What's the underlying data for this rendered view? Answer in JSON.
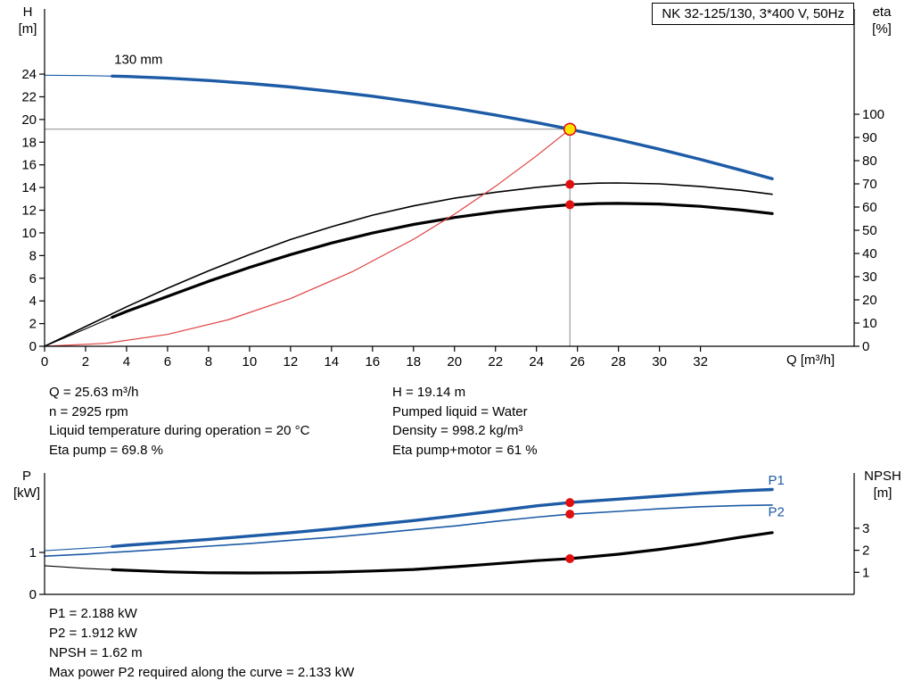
{
  "colors": {
    "curve_blue": "#1d5ba6",
    "curve_black": "#000000",
    "curve_red": "#e04040",
    "dot_red": "#e01010",
    "duty_fill": "#ffe400",
    "duty_stroke": "#e01010",
    "guide": "#8c8c8c",
    "axis": "#000000",
    "label_blue": "#1d5ba6"
  },
  "axis_captions": {
    "top": {
      "left": [
        "H",
        "[m]"
      ],
      "right": [
        "eta",
        "[%]"
      ],
      "x": "Q [m³/h]"
    },
    "bottom": {
      "left": [
        "P",
        "[kW]"
      ],
      "right": [
        "NPSH",
        "[m]"
      ]
    }
  },
  "info": {
    "left": [
      "Q = 25.63 m³/h",
      "n = 2925 rpm",
      "Liquid temperature during operation = 20 °C",
      "Eta pump = 69.8 %"
    ],
    "right": [
      "H = 19.14 m",
      "Pumped liquid = Water",
      "Density = 998.2 kg/m³",
      "Eta pump+motor = 61 %"
    ]
  },
  "results": [
    "P1 = 2.188 kW",
    "P2 = 1.912 kW",
    "NPSH = 1.62 m",
    "Max power P2 required along the curve = 2.133 kW"
  ],
  "chart_data": [
    {
      "id": "qh",
      "type": "line",
      "title": "NK 32-125/130, 3*400 V, 50Hz",
      "x": {
        "label": "Q [m³/h]",
        "min": 0,
        "max": 39.5,
        "ticks": [
          0,
          2,
          4,
          6,
          8,
          10,
          12,
          14,
          16,
          18,
          20,
          22,
          24,
          26,
          28,
          30,
          32
        ]
      },
      "y_left": {
        "label": "H [m]",
        "min": 0,
        "max": 29.75,
        "ticks": [
          0,
          2,
          4,
          6,
          8,
          10,
          12,
          14,
          16,
          18,
          20,
          22,
          24
        ]
      },
      "y_right": {
        "label": "eta [%]",
        "min": 0,
        "max": 145.4,
        "ticks": [
          0,
          10,
          20,
          30,
          40,
          50,
          60,
          70,
          80,
          90,
          100
        ]
      },
      "grid": false,
      "series": [
        {
          "name": "head-curve-130mm",
          "axis": "left",
          "color": "#1d5ba6",
          "width": 3.4,
          "thin_width": 1.1,
          "thick_from": 3.3,
          "points": [
            [
              0,
              23.9
            ],
            [
              2,
              23.87
            ],
            [
              3.3,
              23.82
            ],
            [
              4,
              23.79
            ],
            [
              6,
              23.64
            ],
            [
              8,
              23.44
            ],
            [
              10,
              23.18
            ],
            [
              12,
              22.86
            ],
            [
              14,
              22.48
            ],
            [
              16,
              22.05
            ],
            [
              18,
              21.55
            ],
            [
              20,
              21.0
            ],
            [
              22,
              20.39
            ],
            [
              24,
              19.73
            ],
            [
              25.63,
              19.14
            ],
            [
              28,
              18.22
            ],
            [
              30,
              17.38
            ],
            [
              32,
              16.48
            ],
            [
              34,
              15.52
            ],
            [
              35.5,
              14.77
            ]
          ]
        },
        {
          "name": "eta-pump-curve",
          "axis": "right",
          "color": "#000000",
          "width": 1.6,
          "thin_width": 1.6,
          "thick_from": -1,
          "points": [
            [
              0,
              0
            ],
            [
              2,
              8.5
            ],
            [
              4,
              17
            ],
            [
              6,
              25
            ],
            [
              8,
              32.5
            ],
            [
              10,
              39.5
            ],
            [
              12,
              46
            ],
            [
              14,
              51.5
            ],
            [
              16,
              56.5
            ],
            [
              18,
              60.5
            ],
            [
              20,
              63.8
            ],
            [
              22,
              66.4
            ],
            [
              24,
              68.5
            ],
            [
              25.63,
              69.8
            ],
            [
              27,
              70.3
            ],
            [
              28,
              70.4
            ],
            [
              30,
              70.0
            ],
            [
              32,
              68.9
            ],
            [
              34,
              67.2
            ],
            [
              35.5,
              65.5
            ]
          ]
        },
        {
          "name": "eta-pump-motor-curve",
          "axis": "right",
          "color": "#000000",
          "width": 3.2,
          "thin_width": 1.1,
          "thick_from": 3.3,
          "points": [
            [
              0,
              0
            ],
            [
              2,
              7.5
            ],
            [
              3.3,
              12.5
            ],
            [
              4,
              15
            ],
            [
              6,
              21.5
            ],
            [
              8,
              28
            ],
            [
              10,
              34
            ],
            [
              12,
              39.5
            ],
            [
              14,
              44.5
            ],
            [
              16,
              48.8
            ],
            [
              18,
              52.5
            ],
            [
              20,
              55.5
            ],
            [
              22,
              57.9
            ],
            [
              24,
              59.8
            ],
            [
              25.63,
              61.0
            ],
            [
              27,
              61.5
            ],
            [
              28,
              61.6
            ],
            [
              30,
              61.3
            ],
            [
              32,
              60.3
            ],
            [
              34,
              58.7
            ],
            [
              35.5,
              57.2
            ]
          ]
        },
        {
          "name": "system-curve",
          "axis": "left",
          "color": "#e04040",
          "width": 1.2,
          "thin_width": 1.2,
          "thick_from": -1,
          "points": [
            [
              0,
              0
            ],
            [
              3,
              0.26
            ],
            [
              6,
              1.05
            ],
            [
              9,
              2.36
            ],
            [
              12,
              4.2
            ],
            [
              15,
              6.56
            ],
            [
              18,
              9.44
            ],
            [
              20,
              11.65
            ],
            [
              22,
              14.1
            ],
            [
              24,
              16.79
            ],
            [
              25.63,
              19.14
            ]
          ]
        }
      ],
      "guides": [
        {
          "dir": "h",
          "axis": "left",
          "v": 19.14,
          "q1": 0,
          "q2": 25.63
        },
        {
          "dir": "v",
          "axis": "left",
          "q": 25.63,
          "v1": 0,
          "v2": 19.14
        }
      ],
      "markers": [
        {
          "q": 25.63,
          "v": 69.8,
          "axis": "right",
          "kind": "op"
        },
        {
          "q": 25.63,
          "v": 61.0,
          "axis": "right",
          "kind": "op"
        },
        {
          "q": 25.63,
          "v": 19.14,
          "axis": "left",
          "kind": "duty"
        }
      ],
      "annotations": [
        {
          "name": "impeller-size-label",
          "text": "130 mm",
          "q": 3.4,
          "v": 24.9,
          "axis": "left",
          "anchor": "start",
          "color": "#000000"
        }
      ]
    },
    {
      "id": "power-npsh",
      "type": "line",
      "title": "",
      "x": {
        "label": "",
        "min": 0,
        "max": 39.5,
        "ticks": []
      },
      "y_left": {
        "label": "P [kW]",
        "min": 0,
        "max": 2.894,
        "ticks": [
          0,
          1
        ]
      },
      "y_right": {
        "label": "NPSH [m]",
        "min": 0,
        "max": 5.506,
        "ticks": [
          1,
          2,
          3
        ]
      },
      "grid": false,
      "series": [
        {
          "name": "p1-curve",
          "axis": "left",
          "color": "#1d5ba6",
          "width": 3.4,
          "thin_width": 1.1,
          "thick_from": 3.3,
          "points": [
            [
              0,
              1.04
            ],
            [
              2,
              1.1
            ],
            [
              3.3,
              1.14
            ],
            [
              4,
              1.17
            ],
            [
              6,
              1.24
            ],
            [
              8,
              1.31
            ],
            [
              10,
              1.39
            ],
            [
              12,
              1.47
            ],
            [
              14,
              1.56
            ],
            [
              16,
              1.66
            ],
            [
              18,
              1.76
            ],
            [
              20,
              1.87
            ],
            [
              22,
              1.99
            ],
            [
              24,
              2.11
            ],
            [
              25.63,
              2.19
            ],
            [
              28,
              2.27
            ],
            [
              30,
              2.34
            ],
            [
              32,
              2.41
            ],
            [
              34,
              2.47
            ],
            [
              35.5,
              2.5
            ]
          ]
        },
        {
          "name": "p2-curve",
          "axis": "left",
          "color": "#1d5ba6",
          "width": 1.6,
          "thin_width": 1.6,
          "thick_from": -1,
          "points": [
            [
              0,
              0.91
            ],
            [
              2,
              0.96
            ],
            [
              3.3,
              1.0
            ],
            [
              4,
              1.02
            ],
            [
              6,
              1.08
            ],
            [
              8,
              1.15
            ],
            [
              10,
              1.21
            ],
            [
              12,
              1.29
            ],
            [
              14,
              1.36
            ],
            [
              16,
              1.45
            ],
            [
              18,
              1.54
            ],
            [
              20,
              1.63
            ],
            [
              22,
              1.74
            ],
            [
              24,
              1.84
            ],
            [
              25.63,
              1.91
            ],
            [
              28,
              1.98
            ],
            [
              30,
              2.04
            ],
            [
              32,
              2.09
            ],
            [
              34,
              2.12
            ],
            [
              35.5,
              2.13
            ]
          ]
        },
        {
          "name": "npsh-curve",
          "axis": "right",
          "color": "#000000",
          "width": 3.2,
          "thin_width": 1.1,
          "thick_from": 3.3,
          "points": [
            [
              0,
              1.3
            ],
            [
              2,
              1.18
            ],
            [
              3.3,
              1.12
            ],
            [
              6,
              1.02
            ],
            [
              8,
              0.98
            ],
            [
              10,
              0.97
            ],
            [
              12,
              0.98
            ],
            [
              14,
              1.01
            ],
            [
              16,
              1.06
            ],
            [
              18,
              1.13
            ],
            [
              20,
              1.25
            ],
            [
              22,
              1.39
            ],
            [
              24,
              1.53
            ],
            [
              25.63,
              1.62
            ],
            [
              28,
              1.82
            ],
            [
              30,
              2.04
            ],
            [
              32,
              2.3
            ],
            [
              34,
              2.6
            ],
            [
              35.5,
              2.8
            ]
          ]
        }
      ],
      "guides": [],
      "markers": [
        {
          "q": 25.63,
          "v": 2.188,
          "axis": "left",
          "kind": "op"
        },
        {
          "q": 25.63,
          "v": 1.912,
          "axis": "left",
          "kind": "op"
        },
        {
          "q": 25.63,
          "v": 1.62,
          "axis": "right",
          "kind": "op"
        }
      ],
      "annotations": [
        {
          "name": "p1-curve-label",
          "text": "P1",
          "q": 35.3,
          "v": 2.62,
          "axis": "left",
          "anchor": "start",
          "color": "#1d5ba6"
        },
        {
          "name": "p2-curve-label",
          "text": "P2",
          "q": 35.3,
          "v": 1.86,
          "axis": "left",
          "anchor": "start",
          "color": "#1d5ba6"
        }
      ]
    }
  ]
}
